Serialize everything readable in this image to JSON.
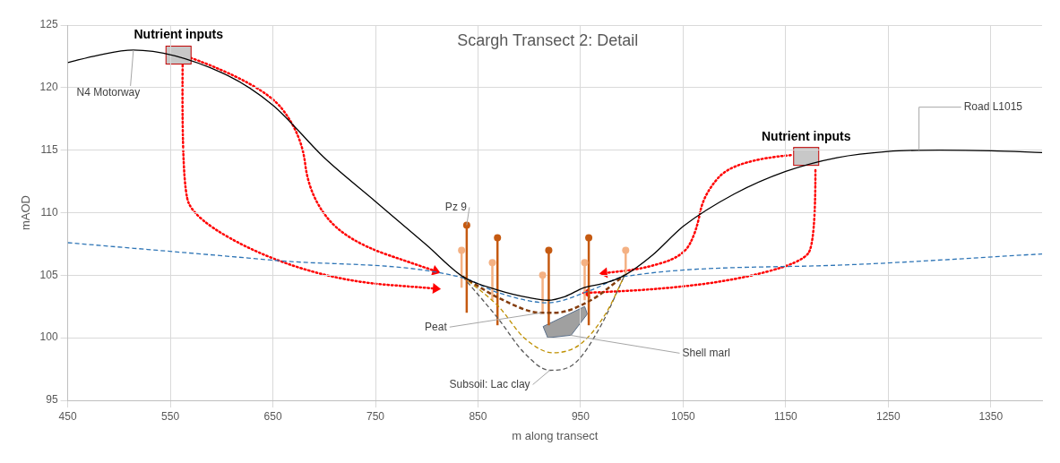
{
  "chart_data": {
    "type": "line",
    "title": "Scargh Transect 2: Detail",
    "xlabel": "m along transect",
    "ylabel": "mAOD",
    "xlim": [
      450,
      1400
    ],
    "xticks": [
      450,
      550,
      650,
      750,
      850,
      950,
      1050,
      1150,
      1250,
      1350
    ],
    "ylim": [
      95,
      125
    ],
    "yticks": [
      95,
      100,
      105,
      110,
      115,
      120,
      125
    ],
    "grid": true,
    "legend": false,
    "series": [
      {
        "color": "#000000",
        "line_style": "solid",
        "marker": "none",
        "x": [
          450,
          480,
          514,
          600,
          650,
          700,
          750,
          800,
          835,
          870,
          900,
          918,
          935,
          953,
          975,
          993,
          1020,
          1050,
          1100,
          1150,
          1200,
          1250,
          1300,
          1350,
          1400
        ],
        "values": [
          122,
          122.6,
          123,
          121.2,
          118.6,
          114.4,
          110.9,
          107.4,
          104.9,
          103.8,
          103.2,
          103,
          103.3,
          104,
          104.4,
          105,
          106.6,
          108.9,
          111.5,
          113.3,
          114.4,
          114.9,
          115,
          114.95,
          114.8
        ]
      },
      {
        "color": "#2e75b6",
        "line_style": "dashed",
        "marker": "none",
        "x": [
          450,
          650,
          835,
          870,
          918,
          960,
          993,
          1200,
          1400
        ],
        "values": [
          107.6,
          106.2,
          104.8,
          103.6,
          102.8,
          103.8,
          104.9,
          105.8,
          106.7
        ]
      },
      {
        "color": "#843c0c",
        "line_style": "dashed",
        "marker": "none",
        "x": [
          835,
          870,
          912,
          925,
          960,
          993
        ],
        "values": [
          104.9,
          103.2,
          102,
          102,
          103,
          105
        ]
      },
      {
        "color": "#bf9000",
        "line_style": "dashed",
        "marker": "none",
        "x": [
          835,
          870,
          895,
          923,
          950,
          975,
          993
        ],
        "values": [
          104.9,
          102.5,
          100,
          98.8,
          99.5,
          102,
          105
        ]
      },
      {
        "color": "#595959",
        "line_style": "dashed",
        "marker": "none",
        "x": [
          835,
          870,
          895,
          920,
          945,
          970,
          993
        ],
        "values": [
          104.9,
          101.5,
          98.8,
          97.4,
          98,
          101,
          105
        ]
      },
      {
        "type": "scatter",
        "color": "#c55a11",
        "marker": "circle",
        "x": [
          839,
          869,
          919,
          958
        ],
        "values": [
          109,
          108,
          107,
          108
        ],
        "errors": [
          [
            102,
            109
          ],
          [
            101,
            108
          ],
          [
            101,
            107
          ],
          [
            101,
            108
          ]
        ]
      },
      {
        "type": "scatter",
        "color": "#f4b183",
        "marker": "circle",
        "x": [
          834,
          864,
          913,
          954,
          994
        ],
        "values": [
          107,
          106,
          105,
          106,
          107
        ],
        "errors": [
          [
            104,
            107
          ],
          [
            103,
            106
          ],
          [
            102,
            105
          ],
          [
            103,
            106
          ],
          [
            105,
            107
          ]
        ]
      }
    ],
    "annotations": [
      {
        "text": "Nutrient inputs",
        "x": 558,
        "y": 122.6
      },
      {
        "text": "Nutrient inputs",
        "x": 1170,
        "y": 114.5
      },
      {
        "text": "N4 Motorway",
        "x": 514,
        "y": 123
      },
      {
        "text": "Road L1015",
        "x": 1280,
        "y": 115
      },
      {
        "text": "Pz 9",
        "x": 839,
        "y": 109
      },
      {
        "text": "Peat",
        "x": 912,
        "y": 102
      },
      "Shell marl",
      {
        "text": "Subsoil: Lac clay",
        "x": 920,
        "y": 97.4
      }
    ]
  }
}
